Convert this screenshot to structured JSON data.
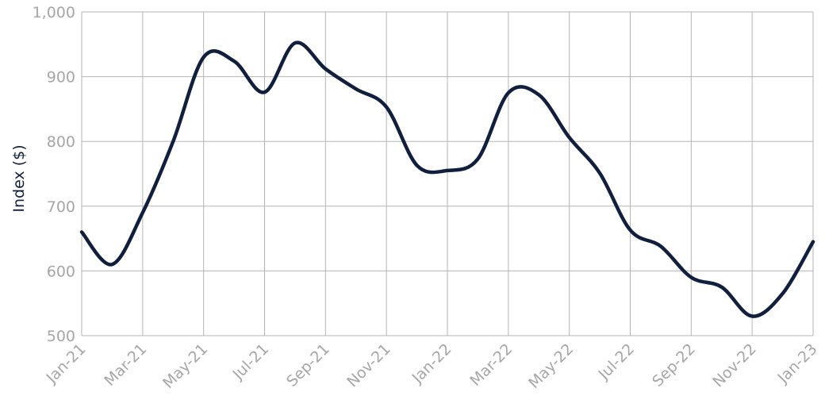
{
  "chart_data": {
    "type": "line",
    "y_label": "Index ($)",
    "categories": [
      "Jan-21",
      null,
      "Mar-21",
      null,
      "May-21",
      null,
      "Jul-21",
      null,
      "Sep-21",
      null,
      "Nov-21",
      null,
      "Jan-22",
      null,
      "Mar-22",
      null,
      "May-22",
      null,
      "Jul-22",
      null,
      "Sep-22",
      null,
      "Nov-22",
      null,
      "Jan-23"
    ],
    "series": [
      {
        "name": "Index",
        "color": "#0f1f3d",
        "values": [
          660,
          610,
          690,
          800,
          930,
          924,
          876,
          952,
          912,
          881,
          853,
          763,
          755,
          773,
          875,
          872,
          806,
          751,
          663,
          638,
          590,
          575,
          530,
          565,
          645
        ]
      }
    ],
    "ylim": [
      500,
      1000
    ],
    "yticks": [
      500,
      600,
      700,
      800,
      900,
      {
        "value": 1000,
        "label": "1,000"
      }
    ],
    "grid": true
  }
}
